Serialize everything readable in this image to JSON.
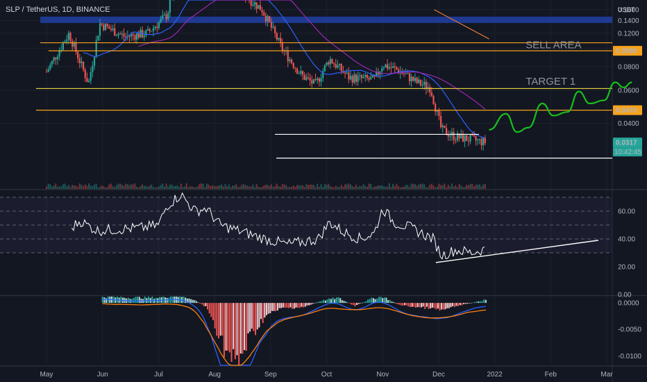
{
  "header": {
    "symbol": "SLP / TetherUS, 1D, BINANCE",
    "unit": "USDT"
  },
  "colors": {
    "background": "#131722",
    "grid": "#1e222d",
    "up": "#26a69a",
    "down": "#ef5350",
    "ma_fast": "#2962ff",
    "ma_slow": "#9c27b0",
    "zone": "#2346b4",
    "level_orange": "#f7a21b",
    "level_yellow": "#e6d23a",
    "projection": "#17c11b",
    "rsi_line": "#ffffff",
    "macd_line": "#2962ff",
    "signal_line": "#ff7f0e"
  },
  "chart_data": [
    {
      "type": "candlestick",
      "name": "price",
      "x_ticks": [
        "May",
        "Jun",
        "Jul",
        "Aug",
        "Sep",
        "Oct",
        "Nov",
        "Dec",
        "2022",
        "Feb",
        "Mar"
      ],
      "y_ticks": [
        "0.1600",
        "0.1400",
        "0.1200",
        "0.1000",
        "0.0800",
        "0.0600",
        "0.0400"
      ],
      "y_range": [
        0.018,
        0.18
      ],
      "price_labels": [
        {
          "text": "0.0969",
          "value": 0.0969,
          "color": "#f7a21b"
        },
        {
          "text": "0.0470",
          "value": 0.047,
          "color": "#f7a21b"
        },
        {
          "text": "0.0317",
          "value": 0.0317,
          "color": "#26a69a"
        }
      ],
      "countdown": "10:42:45",
      "key_points": [
        {
          "month": 5.0,
          "price": 0.075
        },
        {
          "month": 5.4,
          "price": 0.12
        },
        {
          "month": 5.75,
          "price": 0.065
        },
        {
          "month": 5.95,
          "price": 0.135
        },
        {
          "month": 6.4,
          "price": 0.115
        },
        {
          "month": 6.8,
          "price": 0.12
        },
        {
          "month": 7.15,
          "price": 0.15
        },
        {
          "month": 7.35,
          "price": 0.25
        },
        {
          "month": 7.7,
          "price": 0.3
        },
        {
          "month": 8.45,
          "price": 0.2
        },
        {
          "month": 8.85,
          "price": 0.16
        },
        {
          "month": 9.2,
          "price": 0.1
        },
        {
          "month": 9.55,
          "price": 0.072
        },
        {
          "month": 9.8,
          "price": 0.064
        },
        {
          "month": 10.05,
          "price": 0.088
        },
        {
          "month": 10.4,
          "price": 0.07
        },
        {
          "month": 10.85,
          "price": 0.068
        },
        {
          "month": 11.0,
          "price": 0.082
        },
        {
          "month": 11.3,
          "price": 0.076
        },
        {
          "month": 11.6,
          "price": 0.066
        },
        {
          "month": 11.85,
          "price": 0.062
        },
        {
          "month": 12.05,
          "price": 0.037
        },
        {
          "month": 12.3,
          "price": 0.034
        },
        {
          "month": 12.85,
          "price": 0.0317
        }
      ],
      "zones": [
        {
          "from": 0.136,
          "to": 0.147
        }
      ],
      "levels": [
        {
          "value": 0.1069,
          "color": "#f7a21b"
        },
        {
          "value": 0.0969,
          "color": "#f7a21b"
        },
        {
          "value": 0.0612,
          "color": "#e6d23a"
        },
        {
          "value": 0.047,
          "color": "#f7a21b"
        },
        {
          "value": 0.035,
          "color": "#ffffff"
        },
        {
          "value": 0.0262,
          "color": "#ffffff"
        }
      ],
      "annotations": [
        {
          "text": "SELL AREA",
          "month": 14.05,
          "price": 0.1
        },
        {
          "text": "TARGET 1",
          "month": 14.0,
          "price": 0.064
        }
      ],
      "projection": [
        {
          "month": 12.9,
          "price": 0.037
        },
        {
          "month": 13.2,
          "price": 0.045
        },
        {
          "month": 13.4,
          "price": 0.036
        },
        {
          "month": 13.6,
          "price": 0.038
        },
        {
          "month": 13.85,
          "price": 0.051
        },
        {
          "month": 14.05,
          "price": 0.044
        },
        {
          "month": 14.3,
          "price": 0.046
        },
        {
          "month": 14.5,
          "price": 0.059
        },
        {
          "month": 14.7,
          "price": 0.051
        },
        {
          "month": 14.95,
          "price": 0.053
        },
        {
          "month": 15.15,
          "price": 0.066
        },
        {
          "month": 15.3,
          "price": 0.062
        },
        {
          "month": 15.45,
          "price": 0.066
        }
      ],
      "trendline": [
        {
          "month": 11.92,
          "price": 0.16
        },
        {
          "month": 12.9,
          "price": 0.112
        }
      ]
    },
    {
      "type": "line",
      "name": "rsi",
      "y_ticks": [
        "60.00",
        "40.00",
        "20.00",
        "0.00"
      ],
      "y_range": [
        0,
        75
      ],
      "bands": [
        70,
        60,
        50,
        40,
        30
      ],
      "values": [
        {
          "month": 5.45,
          "value": 48
        },
        {
          "month": 5.6,
          "value": 53
        },
        {
          "month": 5.9,
          "value": 46
        },
        {
          "month": 6.3,
          "value": 47
        },
        {
          "month": 6.7,
          "value": 48
        },
        {
          "month": 7.0,
          "value": 50
        },
        {
          "month": 7.15,
          "value": 64
        },
        {
          "month": 7.4,
          "value": 72
        },
        {
          "month": 7.65,
          "value": 60
        },
        {
          "month": 7.85,
          "value": 62
        },
        {
          "month": 8.1,
          "value": 50
        },
        {
          "month": 8.5,
          "value": 45
        },
        {
          "month": 8.9,
          "value": 40
        },
        {
          "month": 9.3,
          "value": 36
        },
        {
          "month": 9.6,
          "value": 38
        },
        {
          "month": 9.85,
          "value": 40
        },
        {
          "month": 10.05,
          "value": 52
        },
        {
          "month": 10.3,
          "value": 45
        },
        {
          "month": 10.6,
          "value": 40
        },
        {
          "month": 10.85,
          "value": 44
        },
        {
          "month": 11.0,
          "value": 62
        },
        {
          "month": 11.2,
          "value": 52
        },
        {
          "month": 11.5,
          "value": 48
        },
        {
          "month": 11.9,
          "value": 40
        },
        {
          "month": 12.05,
          "value": 28
        },
        {
          "month": 12.3,
          "value": 32
        },
        {
          "month": 12.6,
          "value": 30
        },
        {
          "month": 12.85,
          "value": 33
        }
      ],
      "trendline": [
        {
          "month": 11.95,
          "value": 23
        },
        {
          "month": 14.85,
          "value": 39
        }
      ]
    },
    {
      "type": "bar",
      "name": "macd",
      "y_ticks": [
        "0.0000",
        "-0.0050",
        "-0.0100"
      ],
      "y_range": [
        -0.0118,
        0.0012
      ],
      "histogram": [
        {
          "month": 6.0,
          "value": 0.0012
        },
        {
          "month": 6.5,
          "value": 0.001
        },
        {
          "month": 7.0,
          "value": 0.001
        },
        {
          "month": 7.3,
          "value": 0.0014
        },
        {
          "month": 7.6,
          "value": 0.0008
        },
        {
          "month": 7.85,
          "value": -0.0008
        },
        {
          "month": 8.0,
          "value": -0.004
        },
        {
          "month": 8.2,
          "value": -0.009
        },
        {
          "month": 8.4,
          "value": -0.012
        },
        {
          "month": 8.6,
          "value": -0.007
        },
        {
          "month": 8.9,
          "value": -0.0025
        },
        {
          "month": 9.2,
          "value": -0.001
        },
        {
          "month": 9.6,
          "value": -0.0008
        },
        {
          "month": 9.9,
          "value": 0.0004
        },
        {
          "month": 10.2,
          "value": 0.001
        },
        {
          "month": 10.5,
          "value": -0.0006
        },
        {
          "month": 10.8,
          "value": 0.0008
        },
        {
          "month": 11.0,
          "value": 0.0012
        },
        {
          "month": 11.3,
          "value": -0.0004
        },
        {
          "month": 11.6,
          "value": -0.0008
        },
        {
          "month": 11.85,
          "value": -0.001
        },
        {
          "month": 12.05,
          "value": -0.0014
        },
        {
          "month": 12.4,
          "value": -0.0004
        },
        {
          "month": 12.85,
          "value": 0.0006
        }
      ]
    }
  ]
}
